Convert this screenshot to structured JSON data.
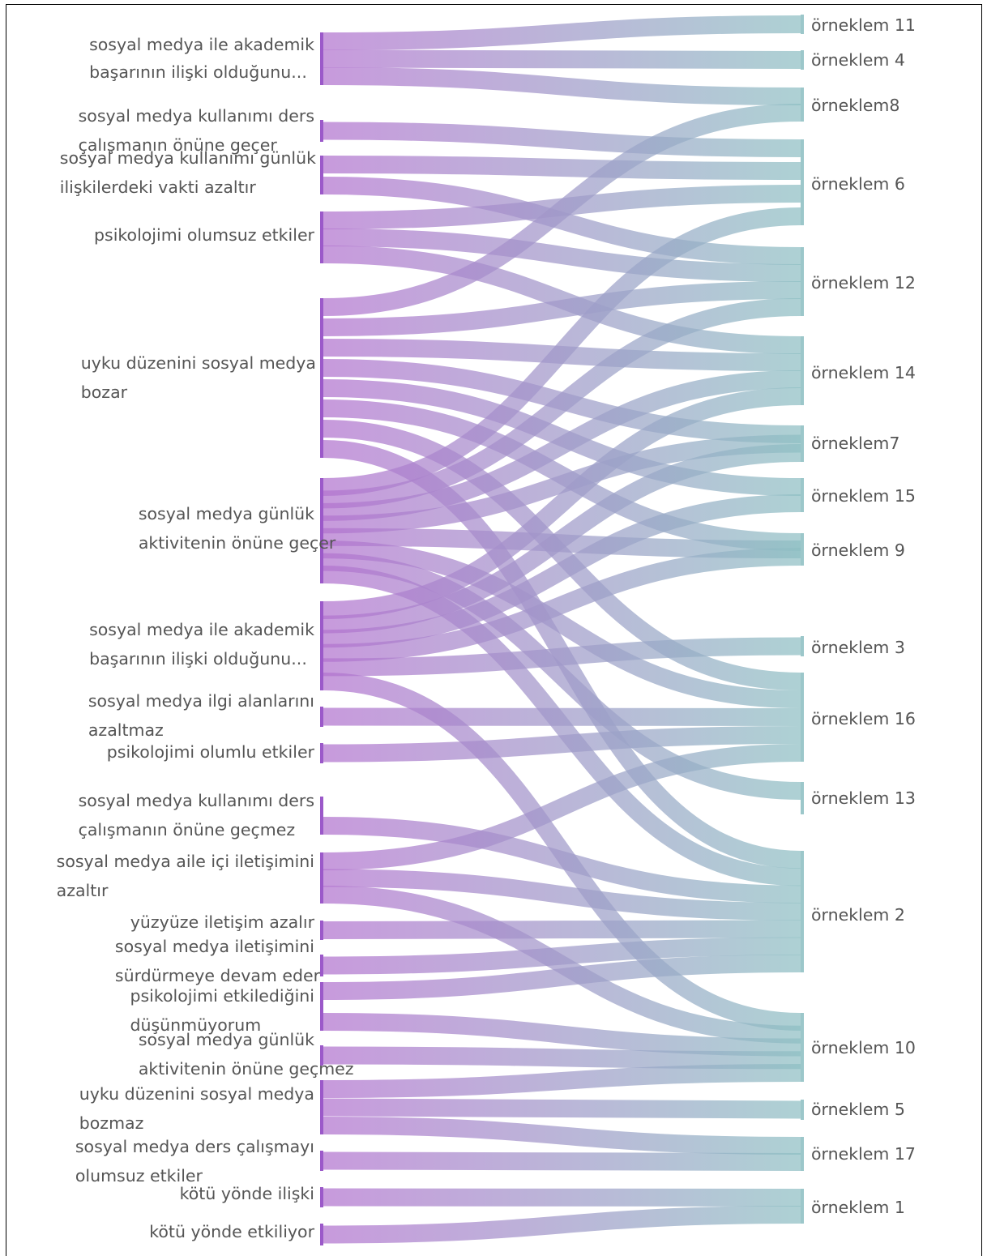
{
  "colors": {
    "source_bar": "#9B59C9",
    "target_bar": "#9CC7CA",
    "link_start": "#B273CF",
    "link_end": "#8EBFC3",
    "label": "#555555"
  },
  "sources": [
    {
      "id": "s1",
      "lines": [
        "sosyal medya ile akademik",
        "başarının ilişki olduğunu..."
      ]
    },
    {
      "id": "s2",
      "lines": [
        "sosyal medya kullanımı ders",
        "çalışmanın önüne geçer"
      ]
    },
    {
      "id": "s3",
      "lines": [
        "sosyal medya kullanımı günlük",
        "ilişkilerdeki vakti azaltır"
      ]
    },
    {
      "id": "s4",
      "lines": [
        "psikolojimi  olumsuz etkiler"
      ]
    },
    {
      "id": "s5",
      "lines": [
        "uyku düzenini sosyal medya",
        "bozar"
      ]
    },
    {
      "id": "s6",
      "lines": [
        "sosyal medya günlük",
        "aktivitenin önüne geçer"
      ]
    },
    {
      "id": "s7",
      "lines": [
        "sosyal medya ile akademik",
        "başarının ilişki olduğunu..."
      ]
    },
    {
      "id": "s8",
      "lines": [
        "sosyal medya ilgi alanlarını",
        "azaltmaz"
      ]
    },
    {
      "id": "s9",
      "lines": [
        "psikolojimi olumlu etkiler"
      ]
    },
    {
      "id": "s10",
      "lines": [
        "sosyal medya kullanımı ders",
        "çalışmanın önüne geçmez"
      ]
    },
    {
      "id": "s11",
      "lines": [
        "sosyal medya aile içi iletişimini",
        "azaltır"
      ]
    },
    {
      "id": "s12",
      "lines": [
        "yüzyüze iletişim azalır"
      ]
    },
    {
      "id": "s13",
      "lines": [
        "sosyal medya iletişimini",
        "sürdürmeye devam eder"
      ]
    },
    {
      "id": "s14",
      "lines": [
        "psikolojimi etkilediğini",
        "düşünmüyorum"
      ]
    },
    {
      "id": "s15",
      "lines": [
        "sosyal medya günlük",
        "aktivitenin önüne geçmez"
      ]
    },
    {
      "id": "s16",
      "lines": [
        "uyku düzenini sosyal medya",
        "bozmaz"
      ]
    },
    {
      "id": "s17",
      "lines": [
        "sosyal medya ders çalışmayı",
        "olumsuz etkiler"
      ]
    },
    {
      "id": "s18",
      "lines": [
        "kötü yönde ilişki"
      ]
    },
    {
      "id": "s19",
      "lines": [
        "kötü yönde etkiliyor"
      ]
    }
  ],
  "targets": [
    {
      "id": "t11",
      "label": "örneklem 11"
    },
    {
      "id": "t4",
      "label": "örneklem 4"
    },
    {
      "id": "t8",
      "label": "örneklem8"
    },
    {
      "id": "t6",
      "label": "örneklem 6"
    },
    {
      "id": "t12",
      "label": "örneklem 12"
    },
    {
      "id": "t14",
      "label": "örneklem 14"
    },
    {
      "id": "t7",
      "label": "örneklem7"
    },
    {
      "id": "t15",
      "label": "örneklem 15"
    },
    {
      "id": "t9",
      "label": "örneklem 9"
    },
    {
      "id": "t3",
      "label": "örneklem 3"
    },
    {
      "id": "t16",
      "label": "örneklem 16"
    },
    {
      "id": "t13",
      "label": "örneklem 13"
    },
    {
      "id": "t2",
      "label": "örneklem 2"
    },
    {
      "id": "t10",
      "label": "örneklem 10"
    },
    {
      "id": "t5",
      "label": "örneklem 5"
    },
    {
      "id": "t17",
      "label": "örneklem 17"
    },
    {
      "id": "t1",
      "label": "örneklem 1"
    }
  ],
  "links": [
    [
      "s1",
      "t11"
    ],
    [
      "s1",
      "t4"
    ],
    [
      "s1",
      "t8"
    ],
    [
      "s2",
      "t6"
    ],
    [
      "s3",
      "t6"
    ],
    [
      "s3",
      "t12"
    ],
    [
      "s4",
      "t6"
    ],
    [
      "s4",
      "t12"
    ],
    [
      "s4",
      "t14"
    ],
    [
      "s5",
      "t8"
    ],
    [
      "s5",
      "t12"
    ],
    [
      "s5",
      "t14"
    ],
    [
      "s5",
      "t7"
    ],
    [
      "s5",
      "t15"
    ],
    [
      "s5",
      "t9"
    ],
    [
      "s5",
      "t16"
    ],
    [
      "s5",
      "t2"
    ],
    [
      "s6",
      "t6"
    ],
    [
      "s6",
      "t12"
    ],
    [
      "s6",
      "t14"
    ],
    [
      "s6",
      "t7"
    ],
    [
      "s6",
      "t9"
    ],
    [
      "s6",
      "t16"
    ],
    [
      "s6",
      "t13"
    ],
    [
      "s6",
      "t2"
    ],
    [
      "s7",
      "t14"
    ],
    [
      "s7",
      "t7"
    ],
    [
      "s7",
      "t15"
    ],
    [
      "s7",
      "t9"
    ],
    [
      "s7",
      "t3"
    ],
    [
      "s7",
      "t10"
    ],
    [
      "s8",
      "t16"
    ],
    [
      "s9",
      "t16"
    ],
    [
      "s10",
      "t13"
    ],
    [
      "s10",
      "t2"
    ],
    [
      "s11",
      "t16"
    ],
    [
      "s11",
      "t2"
    ],
    [
      "s11",
      "t10"
    ],
    [
      "s12",
      "t2"
    ],
    [
      "s13",
      "t2"
    ],
    [
      "s14",
      "t2"
    ],
    [
      "s14",
      "t10"
    ],
    [
      "s15",
      "t10"
    ],
    [
      "s16",
      "t10"
    ],
    [
      "s16",
      "t5"
    ],
    [
      "s16",
      "t17"
    ],
    [
      "s17",
      "t17"
    ],
    [
      "s18",
      "t1"
    ],
    [
      "s19",
      "t1"
    ]
  ]
}
